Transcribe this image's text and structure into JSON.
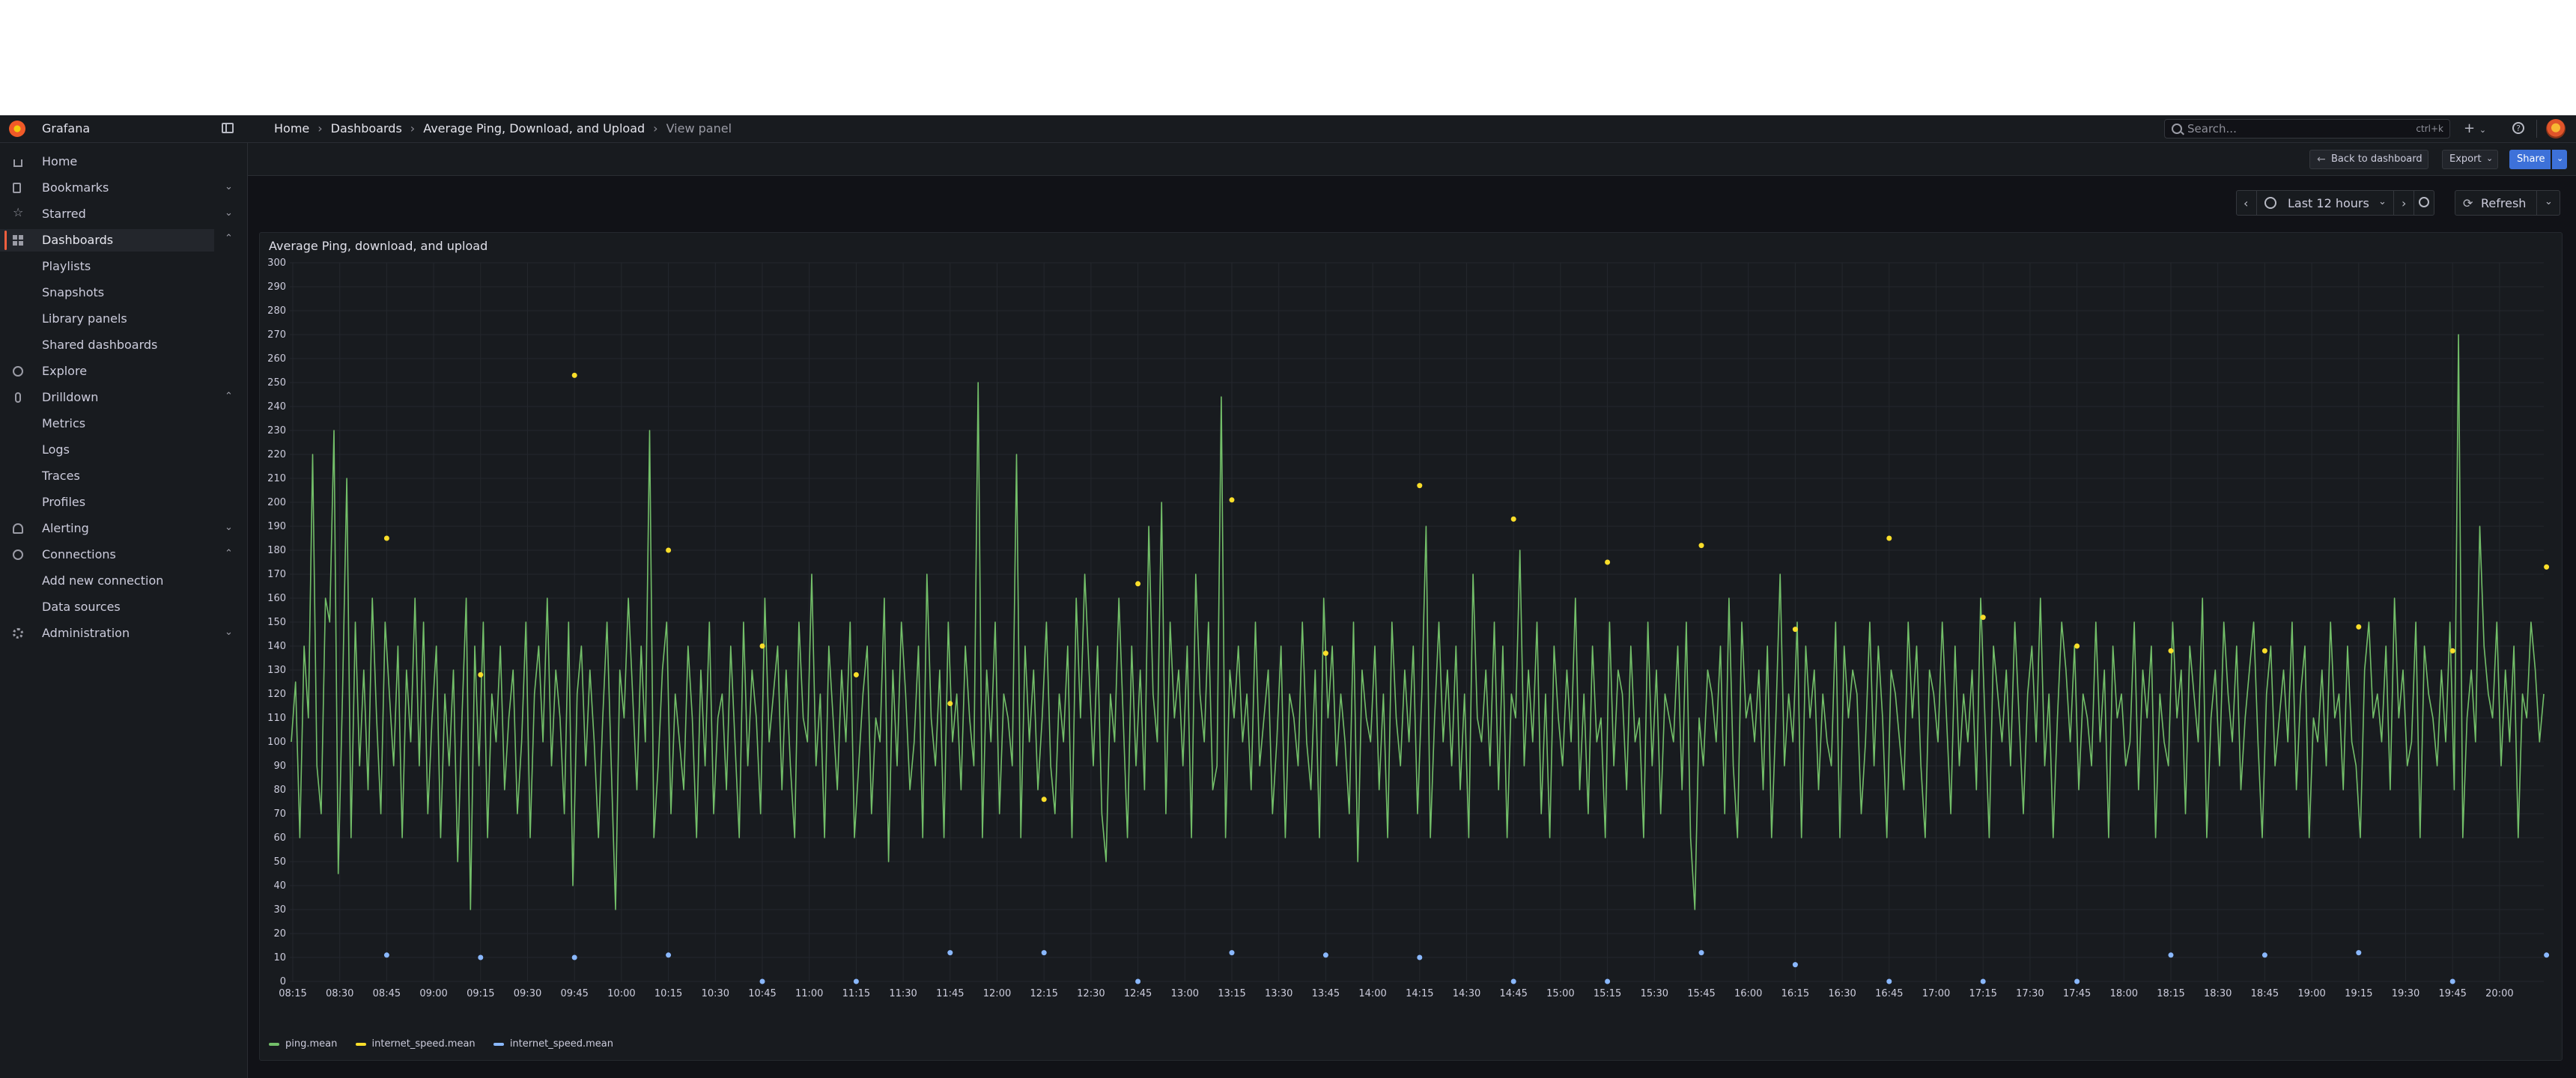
{
  "app": {
    "name": "Grafana"
  },
  "breadcrumb": [
    "Home",
    "Dashboards",
    "Average Ping, Download, and Upload",
    "View panel"
  ],
  "search": {
    "placeholder": "Search...",
    "shortcut": "ctrl+k"
  },
  "topbar": {
    "new_label": "+",
    "help_label": "?"
  },
  "sidebar": {
    "items": [
      {
        "label": "Home",
        "icon": "home-icon"
      },
      {
        "label": "Bookmarks",
        "icon": "bookmark-icon"
      },
      {
        "label": "Starred",
        "icon": "star-icon"
      },
      {
        "label": "Dashboards",
        "icon": "apps-icon"
      },
      {
        "label": "Playlists"
      },
      {
        "label": "Snapshots"
      },
      {
        "label": "Library panels"
      },
      {
        "label": "Shared dashboards"
      },
      {
        "label": "Explore",
        "icon": "compass-icon"
      },
      {
        "label": "Drilldown",
        "icon": "drilldown-icon"
      },
      {
        "label": "Metrics"
      },
      {
        "label": "Logs"
      },
      {
        "label": "Traces"
      },
      {
        "label": "Profiles"
      },
      {
        "label": "Alerting",
        "icon": "bell-icon"
      },
      {
        "label": "Connections",
        "icon": "plug-icon"
      },
      {
        "label": "Add new connection"
      },
      {
        "label": "Data sources"
      },
      {
        "label": "Administration",
        "icon": "cog-icon"
      }
    ]
  },
  "toolbar": {
    "back_label": "Back to dashboard",
    "export_label": "Export",
    "share_label": "Share"
  },
  "timepicker": {
    "range": "Last 12 hours",
    "refresh_label": "Refresh"
  },
  "panel": {
    "title": "Average Ping, download, and upload"
  },
  "colors": {
    "ping": "#73bf69",
    "download": "#fade2a",
    "upload": "#8ab8ff",
    "accent": "#f55f3e",
    "primary": "#3d71d9"
  },
  "chart_data": {
    "type": "line",
    "y_ticks": [
      0,
      10,
      20,
      30,
      40,
      50,
      60,
      70,
      80,
      90,
      100,
      110,
      120,
      130,
      140,
      150,
      160,
      170,
      180,
      190,
      200,
      210,
      220,
      230,
      240,
      250,
      260,
      270,
      280,
      290,
      300
    ],
    "ylim": [
      0,
      300
    ],
    "x_ticks": [
      "08:15",
      "08:30",
      "08:45",
      "09:00",
      "09:15",
      "09:30",
      "09:45",
      "10:00",
      "10:15",
      "10:30",
      "10:45",
      "11:00",
      "11:15",
      "11:30",
      "11:45",
      "12:00",
      "12:15",
      "12:30",
      "12:45",
      "13:00",
      "13:15",
      "13:30",
      "13:45",
      "14:00",
      "14:15",
      "14:30",
      "14:45",
      "15:00",
      "15:15",
      "15:30",
      "15:45",
      "16:00",
      "16:15",
      "16:30",
      "16:45",
      "17:00",
      "17:15",
      "17:30",
      "17:45",
      "18:00",
      "18:15",
      "18:30",
      "18:45",
      "19:00",
      "19:15",
      "19:30",
      "19:45",
      "20:00"
    ],
    "grid": true,
    "legend_position": "bottom-left",
    "series": [
      {
        "name": "ping.mean",
        "style": "line",
        "values": [
          100,
          125,
          60,
          140,
          110,
          220,
          90,
          70,
          160,
          150,
          230,
          45,
          120,
          210,
          60,
          150,
          90,
          130,
          80,
          160,
          110,
          70,
          150,
          120,
          90,
          140,
          60,
          130,
          100,
          160,
          90,
          150,
          70,
          110,
          140,
          60,
          120,
          90,
          130,
          50,
          110,
          160,
          30,
          140,
          90,
          150,
          60,
          120,
          100,
          140,
          80,
          110,
          130,
          70,
          100,
          150,
          60,
          120,
          140,
          100,
          160,
          90,
          130,
          110,
          70,
          150,
          40,
          120,
          140,
          90,
          130,
          100,
          60,
          110,
          150,
          90,
          30,
          130,
          110,
          160,
          120,
          80,
          140,
          100,
          230,
          60,
          90,
          130,
          150,
          70,
          120,
          100,
          80,
          140,
          110,
          60,
          130,
          90,
          150,
          70,
          110,
          120,
          80,
          140,
          100,
          60,
          150,
          90,
          130,
          110,
          70,
          160,
          100,
          120,
          140,
          80,
          130,
          90,
          60,
          150,
          110,
          100,
          170,
          90,
          120,
          60,
          140,
          110,
          80,
          130,
          100,
          150,
          60,
          90,
          120,
          140,
          70,
          110,
          100,
          160,
          50,
          130,
          90,
          150,
          120,
          80,
          100,
          140,
          60,
          170,
          110,
          90,
          130,
          60,
          150,
          100,
          120,
          80,
          140,
          110,
          90,
          250,
          60,
          130,
          100,
          150,
          70,
          120,
          110,
          90,
          220,
          60,
          140,
          100,
          130,
          80,
          110,
          150,
          90,
          70,
          120,
          100,
          140,
          60,
          160,
          110,
          170,
          130,
          90,
          140,
          70,
          50,
          120,
          100,
          160,
          110,
          60,
          140,
          90,
          130,
          80,
          190,
          120,
          100,
          200,
          70,
          150,
          110,
          130,
          90,
          140,
          60,
          170,
          120,
          100,
          150,
          80,
          90,
          244,
          60,
          130,
          110,
          140,
          100,
          120,
          80,
          150,
          90,
          110,
          130,
          70,
          100,
          140,
          60,
          120,
          110,
          90,
          150,
          100,
          80,
          130,
          60,
          160,
          110,
          140,
          90,
          120,
          100,
          70,
          150,
          50,
          130,
          110,
          100,
          140,
          80,
          120,
          60,
          150,
          110,
          90,
          130,
          100,
          140,
          70,
          120,
          190,
          60,
          110,
          150,
          100,
          130,
          90,
          140,
          80,
          120,
          60,
          170,
          110,
          100,
          130,
          90,
          150,
          80,
          140,
          60,
          120,
          110,
          180,
          90,
          130,
          100,
          150,
          70,
          120,
          60,
          140,
          110,
          90,
          130,
          100,
          160,
          80,
          120,
          70,
          140,
          100,
          110,
          60,
          150,
          90,
          130,
          120,
          80,
          140,
          100,
          110,
          60,
          150,
          90,
          130,
          70,
          120,
          110,
          100,
          140,
          80,
          150,
          60,
          30,
          110,
          90,
          130,
          120,
          100,
          140,
          70,
          160,
          90,
          60,
          150,
          110,
          120,
          100,
          130,
          80,
          140,
          60,
          110,
          170,
          90,
          120,
          100,
          150,
          60,
          140,
          110,
          130,
          80,
          120,
          100,
          90,
          150,
          60,
          140,
          110,
          130,
          120,
          70,
          100,
          150,
          90,
          140,
          110,
          60,
          130,
          120,
          100,
          80,
          150,
          110,
          140,
          90,
          60,
          130,
          120,
          100,
          150,
          110,
          70,
          140,
          90,
          120,
          100,
          130,
          80,
          160,
          110,
          60,
          140,
          120,
          100,
          130,
          90,
          150,
          110,
          70,
          120,
          140,
          100,
          160,
          90,
          120,
          60,
          110,
          150,
          130,
          100,
          140,
          80,
          120,
          110,
          90,
          150,
          100,
          130,
          60,
          140,
          110,
          120,
          90,
          100,
          150,
          80,
          130,
          110,
          140,
          60,
          120,
          100,
          90,
          150,
          110,
          130,
          70,
          140,
          120,
          100,
          160,
          60,
          110,
          130,
          90,
          150,
          120,
          100,
          140,
          80,
          110,
          130,
          150,
          100,
          60,
          120,
          140,
          90,
          110,
          130,
          100,
          150,
          80,
          120,
          140,
          60,
          110,
          100,
          130,
          90,
          150,
          110,
          120,
          80,
          140,
          100,
          90,
          60,
          130,
          150,
          110,
          120,
          100,
          140,
          80,
          160,
          110,
          130,
          90,
          100,
          150,
          60,
          140,
          120,
          110,
          90,
          130,
          100,
          150,
          80,
          270,
          60,
          110,
          130,
          100,
          190,
          140,
          120,
          110,
          150,
          90,
          130,
          100,
          140,
          60,
          120,
          110,
          150,
          130,
          100,
          120
        ]
      },
      {
        "name": "internet_speed.mean",
        "style": "points",
        "values": [
          185,
          128,
          253,
          180,
          140,
          128,
          116,
          76,
          166,
          201,
          137,
          207,
          193,
          175,
          182,
          147,
          185,
          152,
          140,
          138,
          138,
          148,
          138,
          173
        ]
      },
      {
        "name": "internet_speed.mean",
        "style": "points",
        "values": [
          11,
          10,
          10,
          11,
          0,
          0,
          12,
          12,
          0,
          12,
          11,
          10,
          0,
          0,
          12,
          7,
          0,
          0,
          0,
          11,
          11,
          12,
          0,
          11
        ]
      }
    ]
  }
}
